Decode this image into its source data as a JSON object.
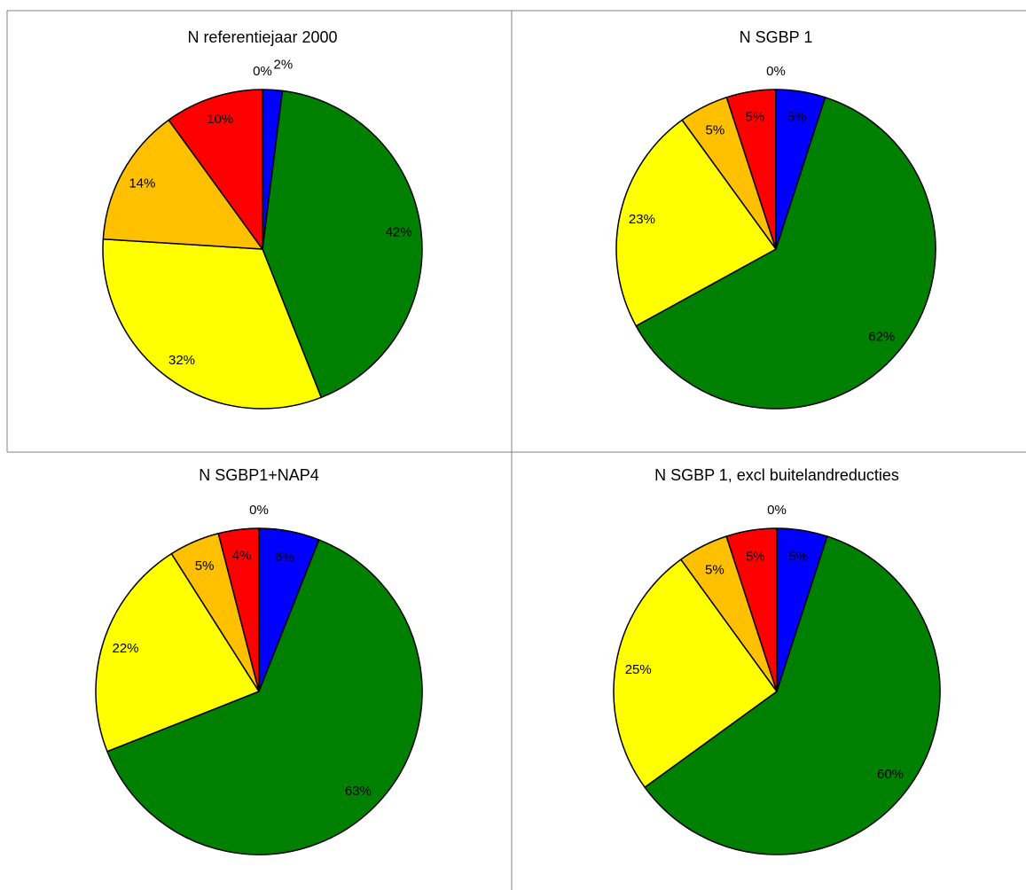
{
  "chart_data": [
    {
      "type": "pie",
      "title": "N referentiejaar 2000",
      "categories": [
        "blue",
        "green",
        "yellow",
        "orange",
        "red",
        "white"
      ],
      "values": [
        2,
        42,
        32,
        14,
        10,
        0
      ],
      "labels": [
        "2%",
        "42%",
        "32%",
        "14%",
        "10%",
        "0%"
      ],
      "colors": [
        "#0000ff",
        "#008000",
        "#ffff00",
        "#ffc000",
        "#ff0000",
        "#ffffff"
      ]
    },
    {
      "type": "pie",
      "title": "N SGBP 1",
      "categories": [
        "blue",
        "green",
        "yellow",
        "orange",
        "red",
        "white"
      ],
      "values": [
        5,
        62,
        23,
        5,
        5,
        0
      ],
      "labels": [
        "5%",
        "62%",
        "23%",
        "5%",
        "5%",
        "0%"
      ],
      "colors": [
        "#0000ff",
        "#008000",
        "#ffff00",
        "#ffc000",
        "#ff0000",
        "#ffffff"
      ]
    },
    {
      "type": "pie",
      "title": "N SGBP1+NAP4",
      "categories": [
        "blue",
        "green",
        "yellow",
        "orange",
        "red",
        "white"
      ],
      "values": [
        6,
        63,
        22,
        5,
        4,
        0
      ],
      "labels": [
        "6%",
        "63%",
        "22%",
        "5%",
        "4%",
        "0%"
      ],
      "colors": [
        "#0000ff",
        "#008000",
        "#ffff00",
        "#ffc000",
        "#ff0000",
        "#ffffff"
      ]
    },
    {
      "type": "pie",
      "title": "N SGBP 1, excl buitelandreducties",
      "categories": [
        "blue",
        "green",
        "yellow",
        "orange",
        "red",
        "white"
      ],
      "values": [
        5,
        60,
        25,
        5,
        5,
        0
      ],
      "labels": [
        "5%",
        "60%",
        "25%",
        "5%",
        "5%",
        "0%"
      ],
      "colors": [
        "#0000ff",
        "#008000",
        "#ffff00",
        "#ffc000",
        "#ff0000",
        "#ffffff"
      ]
    }
  ]
}
